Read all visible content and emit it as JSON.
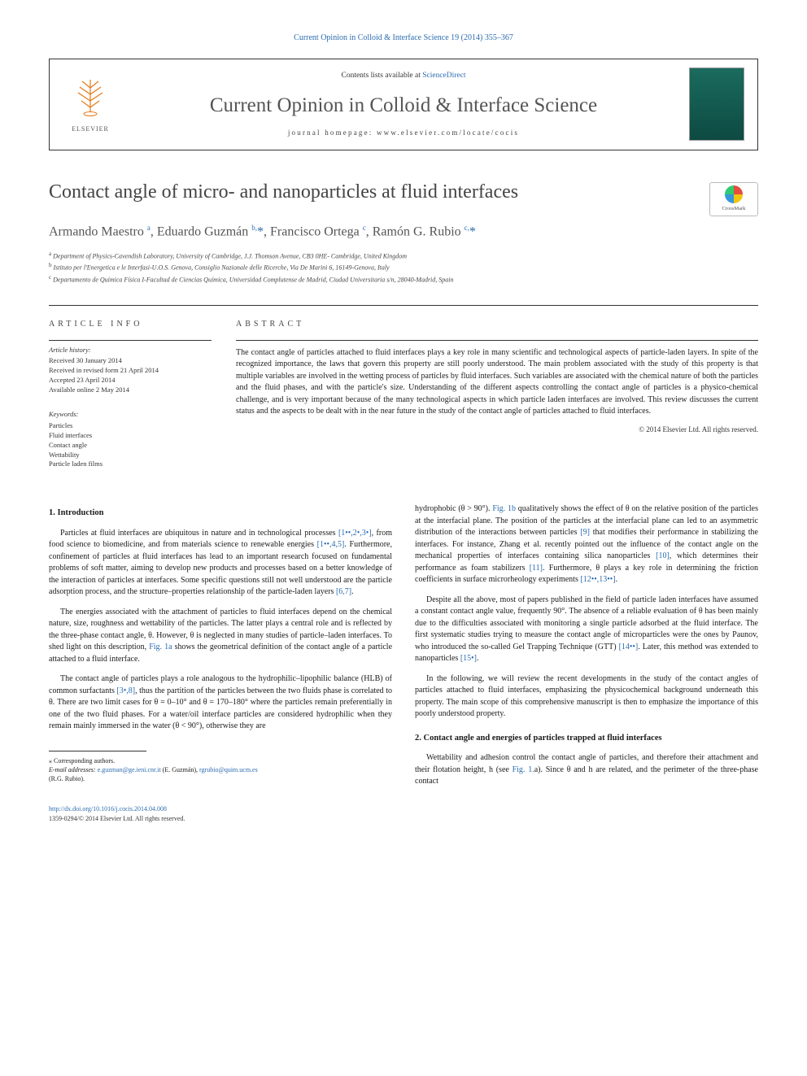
{
  "citation": "Current Opinion in Colloid & Interface Science 19 (2014) 355–367",
  "header": {
    "contents_prefix": "Contents lists available at ",
    "contents_link": "ScienceDirect",
    "journal": "Current Opinion in Colloid & Interface Science",
    "homepage_prefix": "journal homepage: ",
    "homepage_url": "www.elsevier.com/locate/cocis",
    "publisher": "ELSEVIER"
  },
  "crossmark": "CrossMark",
  "title": "Contact angle of micro- and nanoparticles at fluid interfaces",
  "authors_html": "Armando Maestro <sup>a</sup>, Eduardo Guzmán <sup>b,</sup><span class='star'>*</span>, Francisco Ortega <sup>c</sup>, Ramón G. Rubio <sup>c,</sup><span class='star'>*</span>",
  "affiliations": {
    "a": "Department of Physics-Cavendish Laboratory, University of Cambridge, J.J. Thomson Avenue, CB3 0HE- Cambridge, United Kingdom",
    "b": "Istituto per l'Energetica e le Interfasi-U.O.S. Genova, Consiglio Nazionale delle Ricerche, Via De Marini 6, 16149-Genova, Italy",
    "c": "Departamento de Química Física I-Facultad de Ciencias Química, Universidad Complutense de Madrid, Ciudad Universitaria s/n, 28040-Madrid, Spain"
  },
  "info": {
    "label": "article info",
    "history_label": "Article history:",
    "received": "Received 30 January 2014",
    "revised": "Received in revised form 21 April 2014",
    "accepted": "Accepted 23 April 2014",
    "online": "Available online 2 May 2014",
    "keywords_label": "Keywords:",
    "keywords": [
      "Particles",
      "Fluid interfaces",
      "Contact angle",
      "Wettability",
      "Particle laden films"
    ]
  },
  "abstract": {
    "label": "abstract",
    "text": "The contact angle of particles attached to fluid interfaces plays a key role in many scientific and technological aspects of particle-laden layers. In spite of the recognized importance, the laws that govern this property are still poorly understood. The main problem associated with the study of this property is that multiple variables are involved in the wetting process of particles by fluid interfaces. Such variables are associated with the chemical nature of both the particles and the fluid phases, and with the particle's size. Understanding of the different aspects controlling the contact angle of particles is a physico-chemical challenge, and is very important because of the many technological aspects in which particle laden interfaces are involved. This review discusses the current status and the aspects to be dealt with in the near future in the study of the contact angle of particles attached to fluid interfaces.",
    "copyright": "© 2014 Elsevier Ltd. All rights reserved."
  },
  "body": {
    "intro_heading": "1. Introduction",
    "sec2_heading": "2. Contact angle and energies of particles trapped at fluid interfaces",
    "p1": "Particles at fluid interfaces are ubiquitous in nature and in technological processes [1••,2•,3•], from food science to biomedicine, and from materials science to renewable energies [1••,4,5]. Furthermore, confinement of particles at fluid interfaces has lead to an important research focused on fundamental problems of soft matter, aiming to develop new products and processes based on a better knowledge of the interaction of particles at interfaces. Some specific questions still not well understood are the particle adsorption process, and the structure–properties relationship of the particle-laden layers [6,7].",
    "p2": "The energies associated with the attachment of particles to fluid interfaces depend on the chemical nature, size, roughness and wettability of the particles. The latter plays a central role and is reflected by the three-phase contact angle, θ. However, θ is neglected in many studies of particle–laden interfaces. To shed light on this description, Fig. 1a shows the geometrical definition of the contact angle of a particle attached to a fluid interface.",
    "p3": "The contact angle of particles plays a role analogous to the hydrophilic–lipophilic balance (HLB) of common surfactants [3•,8], thus the partition of the particles between the two fluids phase is correlated to θ. There are two limit cases for θ = 0–10° and θ = 170–180° where the particles remain preferentially in one of the two fluid phases. For a water/oil interface particles are considered hydrophilic when they remain mainly immersed in the water (θ < 90°), otherwise they are",
    "p4": "hydrophobic (θ > 90°). Fig. 1b qualitatively shows the effect of θ on the relative position of the particles at the interfacial plane. The position of the particles at the interfacial plane can led to an asymmetric distribution of the interactions between particles [9] that modifies their performance in stabilizing the interfaces. For instance, Zhang et al. recently pointed out the influence of the contact angle on the mechanical properties of interfaces containing silica nanoparticles [10], which determines their performance as foam stabilizers [11]. Furthermore, θ plays a key role in determining the friction coefficients in surface microrheology experiments [12••,13••].",
    "p5": "Despite all the above, most of papers published in the field of particle laden interfaces have assumed a constant contact angle value, frequently 90°. The absence of a reliable evaluation of θ has been mainly due to the difficulties associated with monitoring a single particle adsorbed at the fluid interface. The first systematic studies trying to measure the contact angle of microparticles were the ones by Paunov, who introduced the so-called Gel Trapping Technique (GTT) [14••]. Later, this method was extended to nanoparticles [15•].",
    "p6": "In the following, we will review the recent developments in the study of the contact angles of particles attached to fluid interfaces, emphasizing the physicochemical background underneath this property. The main scope of this comprehensive manuscript is then to emphasize the importance of this poorly understood property.",
    "p7": "Wettability and adhesion control the contact angle of particles, and therefore their attachment and their flotation height, h (see Fig. 1.a). Since θ and h are related, and the perimeter of the three-phase contact"
  },
  "footnotes": {
    "corr": "⁎ Corresponding authors.",
    "emails_label": "E-mail addresses:",
    "email1": "e.guzman@ge.ieni.cnr.it",
    "email1_name": "(E. Guzmán),",
    "email2": "rgrubio@quim.ucm.es",
    "email2_name": "(R.G. Rubio)."
  },
  "bottom": {
    "doi": "http://dx.doi.org/10.1016/j.cocis.2014.04.008",
    "issn_line": "1359-0294/© 2014 Elsevier Ltd. All rights reserved."
  },
  "colors": {
    "link": "#2b6caf",
    "elsevier_orange": "#e67817",
    "text": "#1a1a1a",
    "muted": "#555"
  }
}
